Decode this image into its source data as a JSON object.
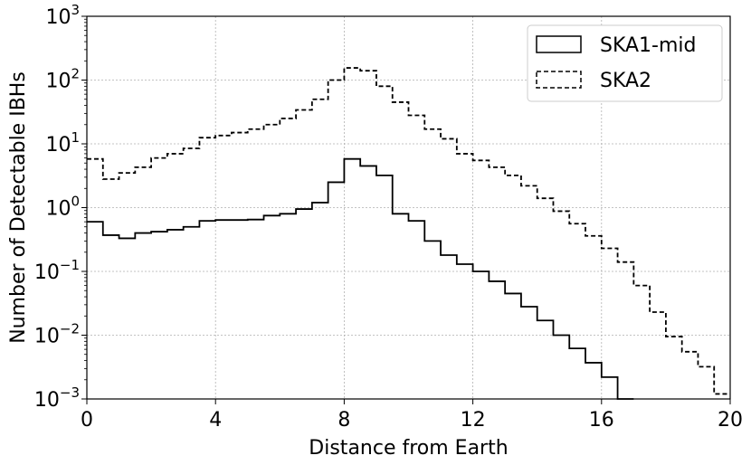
{
  "chart_data": {
    "type": "step",
    "title": "",
    "xlabel": "Distance from Earth",
    "ylabel": "Number of Detectable IBHs",
    "xlim": [
      0,
      20
    ],
    "ylim": [
      0.001,
      1000
    ],
    "yscale": "log",
    "grid": true,
    "legend_position": "top-right",
    "x_ticks": [
      {
        "value": 0,
        "label": "0"
      },
      {
        "value": 4,
        "label": "4"
      },
      {
        "value": 8,
        "label": "8"
      },
      {
        "value": 12,
        "label": "12"
      },
      {
        "value": 16,
        "label": "16"
      },
      {
        "value": 20,
        "label": "20"
      }
    ],
    "y_ticks": [
      {
        "value": 0.001,
        "base": "10",
        "exp": "−3"
      },
      {
        "value": 0.01,
        "base": "10",
        "exp": "−2"
      },
      {
        "value": 0.1,
        "base": "10",
        "exp": "−1"
      },
      {
        "value": 1,
        "base": "10",
        "exp": "0"
      },
      {
        "value": 10,
        "base": "10",
        "exp": "1"
      },
      {
        "value": 100,
        "base": "10",
        "exp": "2"
      },
      {
        "value": 1000,
        "base": "10",
        "exp": "3"
      }
    ],
    "bin_edges": [
      0,
      0.5,
      1,
      1.5,
      2,
      2.5,
      3,
      3.5,
      4,
      4.5,
      5,
      5.5,
      6,
      6.5,
      7,
      7.5,
      8,
      8.5,
      9,
      9.5,
      10,
      10.5,
      11,
      11.5,
      12,
      12.5,
      13,
      13.5,
      14,
      14.5,
      15,
      15.5,
      16,
      16.5,
      17,
      17.5,
      18,
      18.5,
      19,
      19.5,
      20
    ],
    "series": [
      {
        "name": "SKA1-mid",
        "color": "#000000",
        "dash": "solid",
        "values": [
          0.6,
          0.37,
          0.33,
          0.4,
          0.42,
          0.45,
          0.5,
          0.62,
          0.64,
          0.64,
          0.65,
          0.75,
          0.8,
          0.95,
          1.2,
          2.5,
          5.8,
          4.5,
          3.2,
          0.8,
          0.62,
          0.3,
          0.18,
          0.13,
          0.1,
          0.07,
          0.045,
          0.028,
          0.017,
          0.01,
          0.0062,
          0.0037,
          0.0022,
          0.0006,
          null,
          null,
          null,
          null,
          null,
          null
        ]
      },
      {
        "name": "SKA2",
        "color": "#000000",
        "dash": "dashed",
        "values": [
          5.8,
          2.8,
          3.5,
          4.3,
          6.0,
          7.0,
          8.5,
          12.5,
          13.5,
          15,
          17,
          20,
          25,
          34,
          50,
          100,
          155,
          140,
          80,
          45,
          28,
          17,
          12,
          7.0,
          5.5,
          4.3,
          3.2,
          2.2,
          1.4,
          0.88,
          0.56,
          0.36,
          0.23,
          0.14,
          0.06,
          0.023,
          0.0095,
          0.0055,
          0.0032,
          0.0012
        ]
      }
    ]
  }
}
